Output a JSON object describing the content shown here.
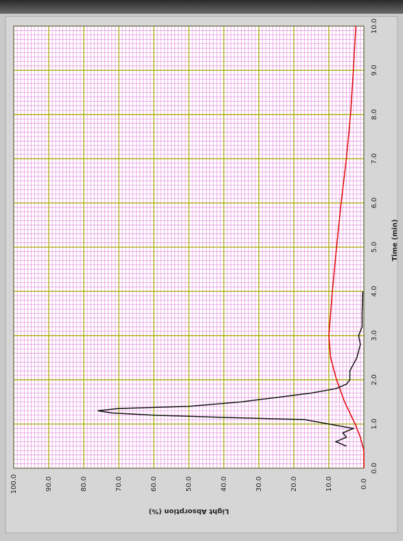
{
  "chart_data": {
    "type": "line",
    "x_label": "Time (min)",
    "y_label": "Light Absorption (%)",
    "xlim": [
      0,
      10
    ],
    "ylim": [
      0,
      100
    ],
    "xticks": [
      {
        "value": 0,
        "label": "0.0"
      },
      {
        "value": 1,
        "label": "1.0"
      },
      {
        "value": 2,
        "label": "2.0"
      },
      {
        "value": 3,
        "label": "3.0"
      },
      {
        "value": 4,
        "label": "4.0"
      },
      {
        "value": 5,
        "label": "5.0"
      },
      {
        "value": 6,
        "label": "6.0"
      },
      {
        "value": 7,
        "label": "7.0"
      },
      {
        "value": 8,
        "label": "8.0"
      },
      {
        "value": 9,
        "label": "9.0"
      },
      {
        "value": 10,
        "label": "10.0"
      }
    ],
    "yticks": [
      {
        "value": 0,
        "label": "0.0"
      },
      {
        "value": 10,
        "label": "10.0"
      },
      {
        "value": 20,
        "label": "20.0"
      },
      {
        "value": 30,
        "label": "30.0"
      },
      {
        "value": 40,
        "label": "40.0"
      },
      {
        "value": 50,
        "label": "50.0"
      },
      {
        "value": 60,
        "label": "60.0"
      },
      {
        "value": 70,
        "label": "70.0"
      },
      {
        "value": 80,
        "label": "80.0"
      },
      {
        "value": 90,
        "label": "90.0"
      },
      {
        "value": 100,
        "label": "100.0"
      }
    ],
    "grid": true,
    "minor_grid": {
      "x_step": 0.1,
      "y_step": 1,
      "color": "#e59be0"
    },
    "major_grid_color": "#a8a800",
    "series": [
      {
        "color": "#e00000",
        "x": [
          0,
          0.4,
          0.7,
          1,
          1.5,
          2,
          2.5,
          3,
          3.5,
          4,
          5,
          6,
          7,
          8,
          9,
          10
        ],
        "values": [
          0,
          0,
          1,
          2.5,
          5.5,
          7.8,
          9.5,
          10,
          9.5,
          9,
          7.8,
          6.5,
          5,
          3.8,
          3,
          2.3
        ]
      },
      {
        "color": "#111111",
        "x": [
          0.5,
          0.6,
          0.7,
          0.8,
          0.9,
          1,
          1.1,
          1.15,
          1.2,
          1.25,
          1.3,
          1.35,
          1.4,
          1.5,
          1.6,
          1.7,
          1.8,
          1.9,
          2,
          2.2,
          2.5,
          2.8,
          3,
          3.2,
          3.5,
          4
        ],
        "values": [
          5,
          8,
          5,
          6,
          3,
          10,
          17,
          40,
          60,
          72,
          76,
          70,
          50,
          35,
          25,
          15,
          8,
          5,
          4,
          4,
          2,
          1,
          1.5,
          0.5,
          0.5,
          0.3
        ]
      }
    ]
  }
}
